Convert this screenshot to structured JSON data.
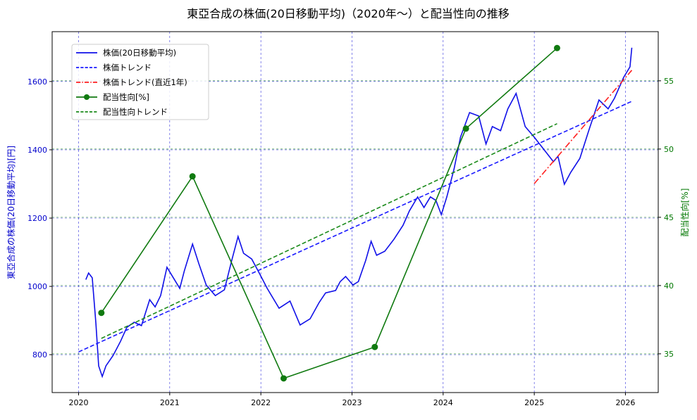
{
  "chart_data": {
    "type": "line",
    "title": "東亞合成の株価(20日移動平均)（2020年～）と配当性向の推移",
    "xlabel": "",
    "ylabel_left": "東亞合成の株価(20日移動平均)[円]",
    "ylabel_right": "配当性向[%]",
    "xlim": [
      2019.71,
      2026.36
    ],
    "ylim_left": [
      689,
      1746
    ],
    "ylim_right": [
      32.16,
      58.6
    ],
    "grid": true,
    "legend_position": "upper-left",
    "x_ticks": [
      2020,
      2021,
      2022,
      2023,
      2024,
      2025,
      2026
    ],
    "x_tick_labels": [
      "2020",
      "2021",
      "2022",
      "2023",
      "2024",
      "2025",
      "2026"
    ],
    "y_left_ticks": [
      800,
      1000,
      1200,
      1400,
      1600
    ],
    "y_left_tick_labels": [
      "800",
      "1000",
      "1200",
      "1400",
      "1600"
    ],
    "y_right_ticks": [
      35,
      40,
      45,
      50,
      55
    ],
    "y_right_tick_labels": [
      "35",
      "40",
      "45",
      "50",
      "55"
    ],
    "colors": {
      "price": "#1010e8",
      "price_trend": "#1a1aff",
      "recent_trend": "#ff2020",
      "payout": "#107a10",
      "payout_trend": "#1a8a1a",
      "left_axis": "#0000cc",
      "right_axis": "#007700"
    },
    "series": [
      {
        "name": "株価(20日移動平均)",
        "axis": "left",
        "style": "solid",
        "x": [
          2020.08,
          2020.11,
          2020.15,
          2020.19,
          2020.22,
          2020.26,
          2020.3,
          2020.38,
          2020.46,
          2020.53,
          2020.61,
          2020.69,
          2020.78,
          2020.84,
          2020.9,
          2020.97,
          2021.04,
          2021.11,
          2021.16,
          2021.25,
          2021.32,
          2021.4,
          2021.5,
          2021.6,
          2021.68,
          2021.75,
          2021.81,
          2021.9,
          2021.99,
          2022.07,
          2022.2,
          2022.32,
          2022.43,
          2022.54,
          2022.64,
          2022.71,
          2022.82,
          2022.87,
          2022.93,
          2023.01,
          2023.07,
          2023.15,
          2023.21,
          2023.27,
          2023.36,
          2023.46,
          2023.56,
          2023.63,
          2023.72,
          2023.79,
          2023.86,
          2023.92,
          2023.98,
          2024.04,
          2024.12,
          2024.19,
          2024.29,
          2024.39,
          2024.47,
          2024.54,
          2024.63,
          2024.71,
          2024.8,
          2024.9,
          2025.0,
          2025.09,
          2025.21,
          2025.26,
          2025.33,
          2025.4,
          2025.5,
          2025.6,
          2025.71,
          2025.81,
          2025.88,
          2025.98,
          2026.05,
          2026.07
        ],
        "y": [
          1020,
          1039,
          1025,
          891,
          767,
          736,
          767,
          798,
          839,
          880,
          895,
          885,
          961,
          940,
          973,
          1056,
          1025,
          994,
          1045,
          1124,
          1066,
          1004,
          973,
          990,
          1076,
          1146,
          1097,
          1080,
          1035,
          994,
          936,
          957,
          887,
          905,
          953,
          981,
          988,
          1014,
          1029,
          1004,
          1014,
          1076,
          1132,
          1091,
          1103,
          1138,
          1179,
          1221,
          1262,
          1231,
          1262,
          1252,
          1210,
          1262,
          1344,
          1437,
          1509,
          1499,
          1417,
          1468,
          1456,
          1520,
          1565,
          1468,
          1437,
          1406,
          1365,
          1381,
          1299,
          1334,
          1375,
          1458,
          1546,
          1520,
          1551,
          1612,
          1643,
          1699
        ]
      },
      {
        "name": "株価トレンド",
        "axis": "left",
        "style": "dashed",
        "x": [
          2020.0,
          2026.07
        ],
        "y": [
          808,
          1542
        ]
      },
      {
        "name": "株価トレンド(直近1年)",
        "axis": "left",
        "style": "dashdot",
        "x": [
          2025.0,
          2026.07
        ],
        "y": [
          1301,
          1633
        ]
      },
      {
        "name": "配当性向[%]",
        "axis": "right",
        "style": "solid-marker",
        "x": [
          2020.25,
          2021.25,
          2022.25,
          2023.25,
          2024.25,
          2025.25
        ],
        "y": [
          38.0,
          48.0,
          33.2,
          35.5,
          51.5,
          57.4
        ]
      },
      {
        "name": "配当性向トレンド",
        "axis": "right",
        "style": "dashed",
        "x": [
          2020.25,
          2025.25
        ],
        "y": [
          36.13,
          51.86
        ]
      }
    ]
  }
}
